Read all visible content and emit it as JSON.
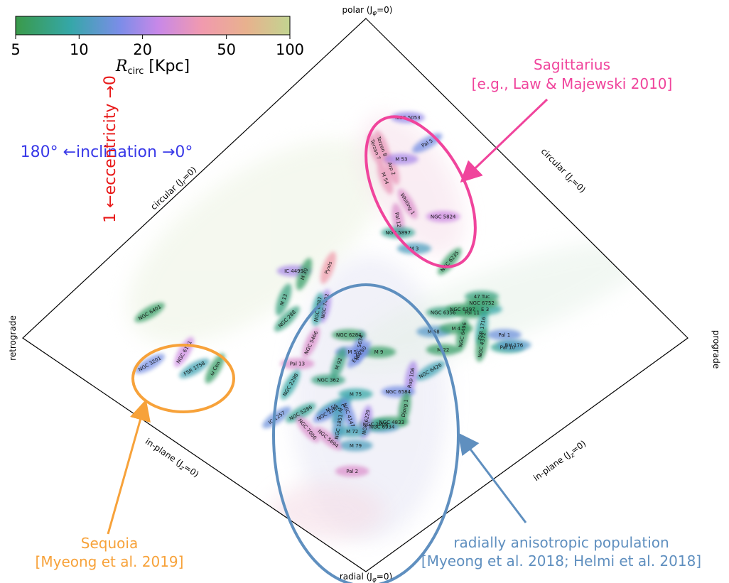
{
  "colorbar": {
    "ticks": [
      "5",
      "10",
      "20",
      "50",
      "100"
    ],
    "label": "R",
    "label_sub": "circ",
    "label_unit": " [Kpc]",
    "colors": [
      "#3a9a4a",
      "#35a7a8",
      "#7b8de8",
      "#c888e8",
      "#f19aae",
      "#e8b18e",
      "#c2d490"
    ]
  },
  "diamond_labels": {
    "top": "polar (J",
    "top_sub": "φ",
    "top_end": "=0)",
    "bottom": "radial (J",
    "bottom_sub": "φ",
    "bottom_end": "=0)",
    "left": "retrograde",
    "right": "prograde",
    "upper_left": "circular (J",
    "upper_left_sub": "r",
    "upper_left_end": "=0)",
    "upper_right": "circular (J",
    "upper_right_sub": "r",
    "upper_right_end": "=0)",
    "lower_left": "in-plane (J",
    "lower_left_sub": "z",
    "lower_left_end": "=0)",
    "lower_right": "in-plane (J",
    "lower_right_sub": "z",
    "lower_right_end": "=0)"
  },
  "side_labels": {
    "inclination": "180° ←inclination →0°",
    "eccentricity": "1 ←eccentricity →0"
  },
  "annotations": {
    "sagittarius": {
      "line1": "Sagittarius",
      "line2": "[e.g., Law & Majewski 2010]",
      "color": "#f0449c"
    },
    "sequoia": {
      "line1": "Sequoia",
      "line2": "[Myeong et al. 2019]",
      "color": "#f7a23a"
    },
    "radial": {
      "line1": "radially anisotropic population",
      "line2": "[Myeong et al. 2018; Helmi et al. 2018]",
      "color": "#5f8fbf"
    }
  },
  "chart_data": {
    "type": "scatter",
    "title": "",
    "xlabel": "",
    "ylabel": "",
    "colorbar": {
      "label": "R_circ [Kpc]",
      "scale": "log",
      "range": [
        5,
        100
      ],
      "ticks": [
        5,
        10,
        20,
        50,
        100
      ]
    },
    "clusters": [
      {
        "name": "NGC 5053",
        "x": 0.13,
        "y": 0.69,
        "rcirc": 18,
        "angle": 0
      },
      {
        "name": "Terzan 8",
        "x": 0.05,
        "y": 0.6,
        "rcirc": 35,
        "angle": 70
      },
      {
        "name": "Terzan 7",
        "x": 0.03,
        "y": 0.59,
        "rcirc": 35,
        "angle": 70
      },
      {
        "name": "M 54",
        "x": 0.06,
        "y": 0.5,
        "rcirc": 35,
        "angle": 70
      },
      {
        "name": "Arp 2",
        "x": 0.08,
        "y": 0.53,
        "rcirc": 35,
        "angle": 70
      },
      {
        "name": "M 53",
        "x": 0.11,
        "y": 0.56,
        "rcirc": 20,
        "angle": 0
      },
      {
        "name": "Pal 5",
        "x": 0.19,
        "y": 0.61,
        "rcirc": 15,
        "angle": -30
      },
      {
        "name": "Whiting 1",
        "x": 0.13,
        "y": 0.42,
        "rcirc": 30,
        "angle": 60
      },
      {
        "name": "Pal 12",
        "x": 0.1,
        "y": 0.37,
        "rcirc": 30,
        "angle": 80
      },
      {
        "name": "NGC 5897",
        "x": 0.1,
        "y": 0.33,
        "rcirc": 8,
        "angle": 0
      },
      {
        "name": "NGC 5824",
        "x": 0.24,
        "y": 0.38,
        "rcirc": 25,
        "angle": 0
      },
      {
        "name": "M 3",
        "x": 0.15,
        "y": 0.28,
        "rcirc": 11,
        "angle": 0
      },
      {
        "name": "NGC 6235",
        "x": 0.26,
        "y": 0.24,
        "rcirc": 6,
        "angle": -50
      },
      {
        "name": "47 Tuc",
        "x": 0.36,
        "y": 0.13,
        "rcirc": 7,
        "angle": 0
      },
      {
        "name": "E 3",
        "x": 0.37,
        "y": 0.09,
        "rcirc": 9,
        "angle": 0
      },
      {
        "name": "NGC 6752",
        "x": 0.36,
        "y": 0.11,
        "rcirc": 6,
        "angle": 0
      },
      {
        "name": "NGC 6356",
        "x": 0.24,
        "y": 0.08,
        "rcirc": 7,
        "angle": 0
      },
      {
        "name": "NGC 6397",
        "x": 0.3,
        "y": 0.09,
        "rcirc": 6,
        "angle": 0
      },
      {
        "name": "Pal 11",
        "x": 0.33,
        "y": 0.08,
        "rcirc": 6,
        "angle": 0
      },
      {
        "name": "M 68",
        "x": 0.21,
        "y": 0.02,
        "rcirc": 12,
        "angle": 0
      },
      {
        "name": "M 4",
        "x": 0.28,
        "y": 0.03,
        "rcirc": 6,
        "angle": 0
      },
      {
        "name": "NGC 6496",
        "x": 0.3,
        "y": 0.01,
        "rcirc": 6,
        "angle": -80
      },
      {
        "name": "FSR 1716",
        "x": 0.36,
        "y": 0.03,
        "rcirc": 9,
        "angle": -80
      },
      {
        "name": "NGC 4372",
        "x": 0.36,
        "y": -0.03,
        "rcirc": 6,
        "angle": -80
      },
      {
        "name": "M 22",
        "x": 0.24,
        "y": -0.05,
        "rcirc": 6,
        "angle": 0
      },
      {
        "name": "Pal 1",
        "x": 0.43,
        "y": 0.01,
        "rcirc": 14,
        "angle": 0
      },
      {
        "name": "Pal 10",
        "x": 0.44,
        "y": -0.04,
        "rcirc": 8,
        "angle": 0
      },
      {
        "name": "BH 176",
        "x": 0.46,
        "y": -0.03,
        "rcirc": 12,
        "angle": 0
      },
      {
        "name": "NGC 6426",
        "x": 0.2,
        "y": -0.14,
        "rcirc": 10,
        "angle": -30
      },
      {
        "name": "Rup 106",
        "x": 0.14,
        "y": -0.17,
        "rcirc": 20,
        "angle": -80
      },
      {
        "name": "NGC 6584",
        "x": 0.1,
        "y": -0.23,
        "rcirc": 15,
        "angle": 0
      },
      {
        "name": "Djorg 1",
        "x": 0.12,
        "y": -0.3,
        "rcirc": 6,
        "angle": -80
      },
      {
        "name": "NGC 4833",
        "x": 0.08,
        "y": -0.36,
        "rcirc": 6,
        "angle": 0
      },
      {
        "name": "NGC 6934",
        "x": 0.05,
        "y": -0.38,
        "rcirc": 12,
        "angle": 0
      },
      {
        "name": "NGC 2808",
        "x": 0.03,
        "y": -0.37,
        "rcirc": 7,
        "angle": 0
      },
      {
        "name": "M 9",
        "x": 0.04,
        "y": -0.06,
        "rcirc": 6,
        "angle": 0
      },
      {
        "name": "ESO280",
        "x": -0.02,
        "y": -0.07,
        "rcirc": 15,
        "angle": -50
      },
      {
        "name": "NGC 5634",
        "x": -0.02,
        "y": -0.04,
        "rcirc": 15,
        "angle": -80
      },
      {
        "name": "M 5",
        "x": -0.04,
        "y": -0.06,
        "rcirc": 15,
        "angle": 0
      },
      {
        "name": "NGC 6284",
        "x": -0.05,
        "y": 0.01,
        "rcirc": 6,
        "angle": 0
      },
      {
        "name": "M 92",
        "x": -0.08,
        "y": -0.11,
        "rcirc": 7,
        "angle": -70
      },
      {
        "name": "NGC 362",
        "x": -0.11,
        "y": -0.18,
        "rcirc": 7,
        "angle": 0
      },
      {
        "name": "M 75",
        "x": -0.03,
        "y": -0.24,
        "rcirc": 9,
        "angle": 0
      },
      {
        "name": "NGC 7492",
        "x": -0.12,
        "y": 0.1,
        "rcirc": 20,
        "angle": -80
      },
      {
        "name": "NGC 6287",
        "x": -0.14,
        "y": 0.09,
        "rcirc": 9,
        "angle": -80
      },
      {
        "name": "Pyxis",
        "x": -0.11,
        "y": 0.22,
        "rcirc": 40,
        "angle": -70
      },
      {
        "name": "IC 4499",
        "x": -0.21,
        "y": 0.21,
        "rcirc": 20,
        "angle": 0
      },
      {
        "name": "M 30",
        "x": -0.18,
        "y": 0.2,
        "rcirc": 6,
        "angle": -70
      },
      {
        "name": "M 13",
        "x": -0.24,
        "y": 0.12,
        "rcirc": 7,
        "angle": -70
      },
      {
        "name": "NGC 288",
        "x": -0.23,
        "y": 0.06,
        "rcirc": 7,
        "angle": -45
      },
      {
        "name": "NGC 5466",
        "x": -0.16,
        "y": -0.02,
        "rcirc": 30,
        "angle": -65
      },
      {
        "name": "Pal 13",
        "x": -0.2,
        "y": -0.11,
        "rcirc": 30,
        "angle": 0
      },
      {
        "name": "NGC 2298",
        "x": -0.22,
        "y": -0.2,
        "rcirc": 9,
        "angle": -60
      },
      {
        "name": "NGC 3201",
        "x": -0.63,
        "y": -0.11,
        "rcirc": 15,
        "angle": -30
      },
      {
        "name": "NGC 6101",
        "x": -0.53,
        "y": -0.06,
        "rcirc": 25,
        "angle": -60
      },
      {
        "name": "FSR 1758",
        "x": -0.5,
        "y": -0.13,
        "rcirc": 10,
        "angle": -30
      },
      {
        "name": "ω Cen",
        "x": -0.44,
        "y": -0.13,
        "rcirc": 6,
        "angle": -60
      },
      {
        "name": "NGC 6401",
        "x": -0.63,
        "y": 0.08,
        "rcirc": 6,
        "angle": -30
      },
      {
        "name": "IC 1257",
        "x": -0.26,
        "y": -0.34,
        "rcirc": 14,
        "angle": -35
      },
      {
        "name": "NGC 5286",
        "x": -0.19,
        "y": -0.32,
        "rcirc": 8,
        "angle": -30
      },
      {
        "name": "M 56",
        "x": -0.1,
        "y": -0.3,
        "rcirc": 9,
        "angle": -30
      },
      {
        "name": "NGC 1261",
        "x": -0.11,
        "y": -0.32,
        "rcirc": 15,
        "angle": -30
      },
      {
        "name": "M 2",
        "x": -0.07,
        "y": -0.3,
        "rcirc": 10,
        "angle": -60
      },
      {
        "name": "NGC 4147",
        "x": -0.05,
        "y": -0.33,
        "rcirc": 15,
        "angle": 70
      },
      {
        "name": "NGC 6229",
        "x": 0.0,
        "y": -0.36,
        "rcirc": 20,
        "angle": -80
      },
      {
        "name": "NGC 1851",
        "x": -0.08,
        "y": -0.38,
        "rcirc": 12,
        "angle": -80
      },
      {
        "name": "M 72",
        "x": -0.04,
        "y": -0.4,
        "rcirc": 10,
        "angle": 0
      },
      {
        "name": "M 79",
        "x": -0.03,
        "y": -0.46,
        "rcirc": 11,
        "angle": 0
      },
      {
        "name": "NGC 7006",
        "x": -0.17,
        "y": -0.39,
        "rcirc": 30,
        "angle": 50
      },
      {
        "name": "NGC 5694",
        "x": -0.11,
        "y": -0.43,
        "rcirc": 30,
        "angle": 40
      },
      {
        "name": "Pal 2",
        "x": -0.04,
        "y": -0.57,
        "rcirc": 30,
        "angle": 0
      }
    ]
  }
}
